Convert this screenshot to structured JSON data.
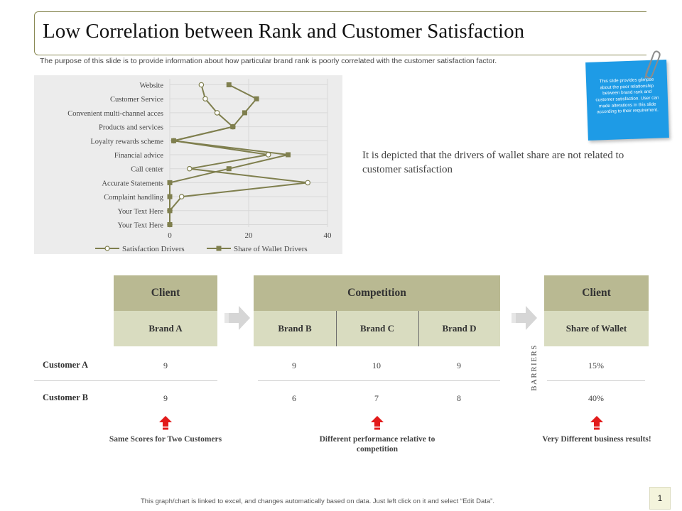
{
  "page": {
    "title": "Low Correlation between Rank and Customer Satisfaction",
    "subtitle": "The purpose of this slide is to provide information about how particular brand rank is poorly correlated with the customer satisfaction factor.",
    "note": "This slide provides glimpse about the poor relationship between brand rank and customer satisfaction. User can made alterations in this slide according to their requirement.",
    "description": "It is depicted that the drivers of wallet share are not related to customer satisfaction",
    "footer": "This graph/chart is linked to excel, and changes automatically based on data. Just left click on it and select “Edit Data”.",
    "page_number": "1"
  },
  "chart_data": {
    "type": "line",
    "orientation": "horizontal",
    "categories": [
      "Website",
      "Customer Service",
      "Convenient multi-channel acces",
      "Products and services",
      "Loyalty rewards scheme",
      "Financial advice",
      "Call center",
      "Accurate Statements",
      "Complaint handling",
      "Your Text Here",
      "Your Text Here"
    ],
    "series": [
      {
        "name": "Satisfaction Drivers",
        "marker": "circle",
        "values": [
          8,
          9,
          12,
          16,
          1,
          25,
          5,
          35,
          3,
          0,
          0
        ]
      },
      {
        "name": "Share of Wallet Drivers",
        "marker": "square",
        "values": [
          15,
          22,
          19,
          16,
          1,
          30,
          15,
          0,
          0,
          0,
          0
        ]
      }
    ],
    "xlim": [
      0,
      40
    ],
    "xticks": [
      "0",
      "20",
      "40"
    ],
    "legend_position": "bottom",
    "grid": true,
    "line_color": "#7f7f4e"
  },
  "table": {
    "groups": [
      {
        "label": "Client"
      },
      {
        "label": "Competition"
      },
      {
        "label": "Client"
      }
    ],
    "brands": [
      "Brand A",
      "Brand B",
      "Brand C",
      "Brand D",
      "Share of Wallet"
    ],
    "rows": [
      {
        "label": "Customer A",
        "values": [
          "9",
          "9",
          "10",
          "9",
          "15%"
        ]
      },
      {
        "label": "Customer B",
        "values": [
          "9",
          "6",
          "7",
          "8",
          "40%"
        ]
      }
    ],
    "barriers_label": "BARRIERS",
    "captions": [
      "Same Scores for Two Customers",
      "Different performance relative to competition",
      "Very Different business results!"
    ]
  },
  "colors": {
    "header": "#b9b992",
    "subheader": "#d9dcc0",
    "note": "#1e9be6",
    "arrow": "#e21b1b",
    "series": "#7f7f4e"
  }
}
